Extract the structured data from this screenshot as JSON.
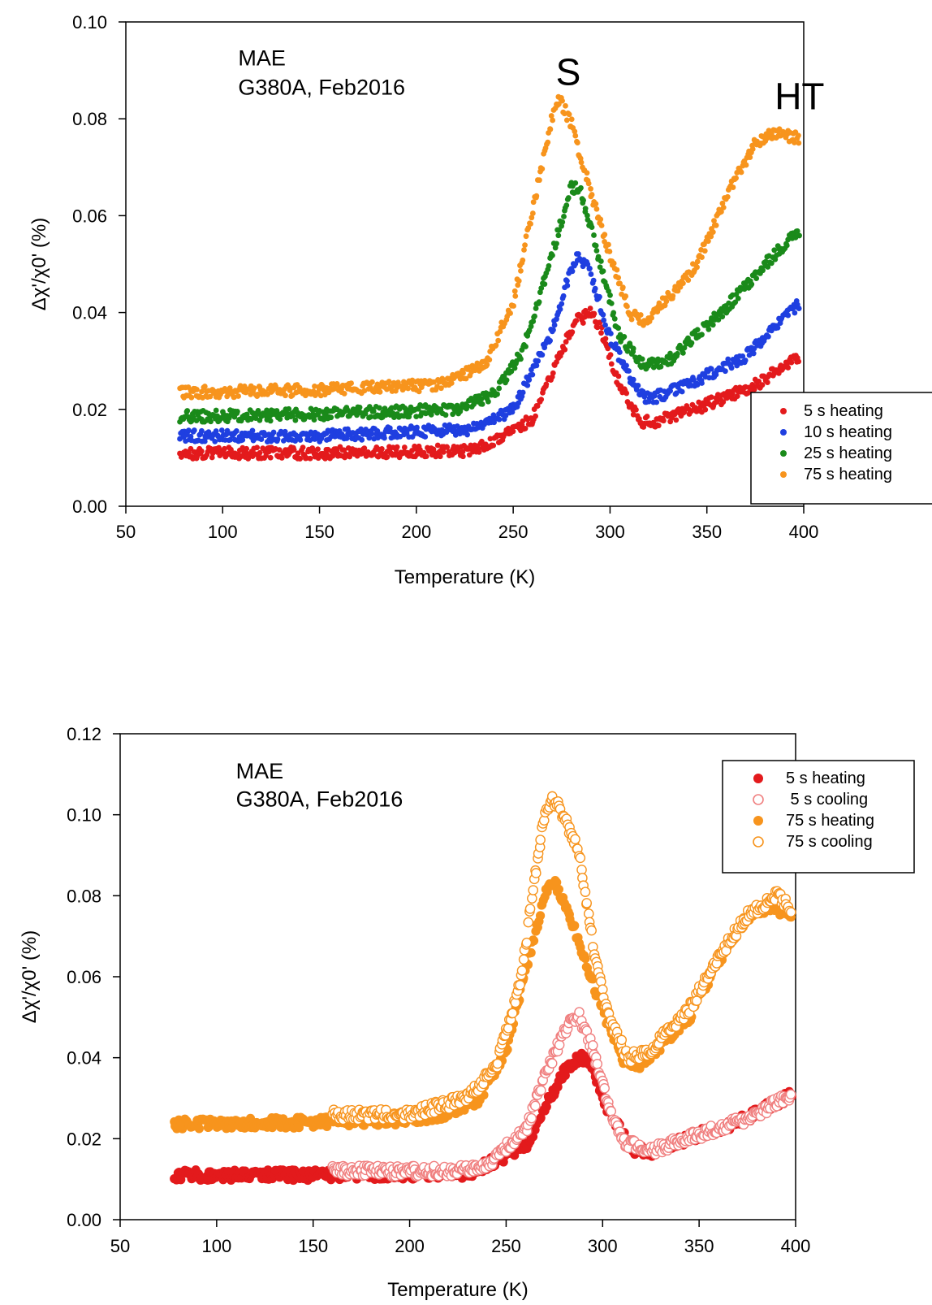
{
  "chart_data": [
    {
      "type": "scatter",
      "xlabel": "Temperature (K)",
      "ylabel": "Δχ'/χ0' (%)",
      "xlim": [
        50,
        400
      ],
      "ylim": [
        0,
        0.1
      ],
      "xticks": [
        50,
        100,
        150,
        200,
        250,
        300,
        350,
        400
      ],
      "xtick_labels": [
        "50",
        "100",
        "150",
        "200",
        "250",
        "300",
        "350",
        "400"
      ],
      "yticks": [
        0,
        0.02,
        0.04,
        0.06,
        0.08,
        0.1
      ],
      "ytick_labels": [
        "0.00",
        "0.02",
        "0.04",
        "0.06",
        "0.08",
        "0.10"
      ],
      "grid": false,
      "legend_position": "bottom-right",
      "annotations": [
        {
          "text": "MAE",
          "x": 108,
          "y": 0.091
        },
        {
          "text": "G380A, Feb2016",
          "x": 108,
          "y": 0.085
        },
        {
          "text": "S",
          "x": 272,
          "y": 0.087
        },
        {
          "text": "HT",
          "x": 385,
          "y": 0.082
        }
      ],
      "series": [
        {
          "name": "5 s heating",
          "color": "#e31a1c",
          "marker": "filled",
          "x_range": [
            78,
            398
          ],
          "points": [
            [
              78,
              0.011
            ],
            [
              150,
              0.011
            ],
            [
              230,
              0.0115
            ],
            [
              260,
              0.018
            ],
            [
              275,
              0.032
            ],
            [
              282,
              0.038
            ],
            [
              290,
              0.04
            ],
            [
              295,
              0.037
            ],
            [
              303,
              0.027
            ],
            [
              315,
              0.0175
            ],
            [
              325,
              0.0175
            ],
            [
              350,
              0.021
            ],
            [
              375,
              0.025
            ],
            [
              398,
              0.031
            ]
          ]
        },
        {
          "name": "10 s heating",
          "color": "#1f3fe0",
          "marker": "filled",
          "x_range": [
            78,
            398
          ],
          "points": [
            [
              78,
              0.0145
            ],
            [
              150,
              0.0145
            ],
            [
              230,
              0.016
            ],
            [
              250,
              0.02
            ],
            [
              270,
              0.036
            ],
            [
              280,
              0.049
            ],
            [
              284,
              0.052
            ],
            [
              290,
              0.048
            ],
            [
              300,
              0.035
            ],
            [
              312,
              0.025
            ],
            [
              320,
              0.022
            ],
            [
              340,
              0.025
            ],
            [
              370,
              0.031
            ],
            [
              398,
              0.042
            ]
          ]
        },
        {
          "name": "25 s heating",
          "color": "#1a8a1a",
          "marker": "filled",
          "x_range": [
            78,
            398
          ],
          "points": [
            [
              78,
              0.0185
            ],
            [
              150,
              0.019
            ],
            [
              220,
              0.02
            ],
            [
              240,
              0.023
            ],
            [
              255,
              0.032
            ],
            [
              270,
              0.052
            ],
            [
              280,
              0.066
            ],
            [
              285,
              0.065
            ],
            [
              295,
              0.05
            ],
            [
              305,
              0.035
            ],
            [
              318,
              0.029
            ],
            [
              330,
              0.03
            ],
            [
              360,
              0.041
            ],
            [
              380,
              0.05
            ],
            [
              398,
              0.057
            ]
          ]
        },
        {
          "name": "75 s heating",
          "color": "#f7941d",
          "marker": "filled",
          "x_range": [
            78,
            398
          ],
          "points": [
            [
              78,
              0.0235
            ],
            [
              150,
              0.024
            ],
            [
              210,
              0.025
            ],
            [
              235,
              0.029
            ],
            [
              250,
              0.042
            ],
            [
              262,
              0.065
            ],
            [
              270,
              0.08
            ],
            [
              274,
              0.084
            ],
            [
              280,
              0.079
            ],
            [
              290,
              0.065
            ],
            [
              300,
              0.052
            ],
            [
              310,
              0.04
            ],
            [
              318,
              0.038
            ],
            [
              330,
              0.043
            ],
            [
              345,
              0.05
            ],
            [
              360,
              0.064
            ],
            [
              375,
              0.075
            ],
            [
              385,
              0.077
            ],
            [
              398,
              0.076
            ]
          ]
        }
      ]
    },
    {
      "type": "scatter",
      "xlabel": "Temperature (K)",
      "ylabel": "Δχ'/χ0' (%)",
      "xlim": [
        50,
        400
      ],
      "ylim": [
        0,
        0.12
      ],
      "xticks": [
        50,
        100,
        150,
        200,
        250,
        300,
        350,
        400
      ],
      "xtick_labels": [
        "50",
        "100",
        "150",
        "200",
        "250",
        "300",
        "350",
        "400"
      ],
      "yticks": [
        0,
        0.02,
        0.04,
        0.06,
        0.08,
        0.1,
        0.12
      ],
      "ytick_labels": [
        "0.00",
        "0.02",
        "0.04",
        "0.06",
        "0.08",
        "0.10",
        "0.12"
      ],
      "grid": false,
      "legend_position": "top-right",
      "annotations": [
        {
          "text": "MAE",
          "x": 110,
          "y": 0.109
        },
        {
          "text": "G380A, Feb2016",
          "x": 110,
          "y": 0.102
        }
      ],
      "series": [
        {
          "name": "5 s heating",
          "color": "#e31a1c",
          "marker": "filled",
          "x_range": [
            78,
            398
          ],
          "points": [
            [
              78,
              0.011
            ],
            [
              150,
              0.011
            ],
            [
              230,
              0.0115
            ],
            [
              260,
              0.018
            ],
            [
              275,
              0.032
            ],
            [
              282,
              0.038
            ],
            [
              290,
              0.04
            ],
            [
              295,
              0.037
            ],
            [
              303,
              0.027
            ],
            [
              315,
              0.0175
            ],
            [
              325,
              0.0165
            ],
            [
              350,
              0.021
            ],
            [
              375,
              0.025
            ],
            [
              398,
              0.031
            ]
          ]
        },
        {
          "name": " 5 s cooling",
          "color": "#f08080",
          "marker": "open",
          "x_range": [
            160,
            398
          ],
          "points": [
            [
              160,
              0.012
            ],
            [
              220,
              0.012
            ],
            [
              240,
              0.0135
            ],
            [
              260,
              0.022
            ],
            [
              272,
              0.038
            ],
            [
              282,
              0.048
            ],
            [
              288,
              0.05
            ],
            [
              295,
              0.042
            ],
            [
              303,
              0.028
            ],
            [
              312,
              0.019
            ],
            [
              325,
              0.017
            ],
            [
              350,
              0.021
            ],
            [
              375,
              0.025
            ],
            [
              398,
              0.031
            ]
          ]
        },
        {
          "name": "75 s heating",
          "color": "#f7941d",
          "marker": "filled",
          "x_range": [
            78,
            398
          ],
          "points": [
            [
              78,
              0.0235
            ],
            [
              150,
              0.024
            ],
            [
              210,
              0.025
            ],
            [
              235,
              0.029
            ],
            [
              250,
              0.042
            ],
            [
              262,
              0.065
            ],
            [
              270,
              0.08
            ],
            [
              274,
              0.084
            ],
            [
              280,
              0.079
            ],
            [
              290,
              0.065
            ],
            [
              300,
              0.052
            ],
            [
              310,
              0.04
            ],
            [
              318,
              0.038
            ],
            [
              330,
              0.043
            ],
            [
              345,
              0.05
            ],
            [
              360,
              0.064
            ],
            [
              375,
              0.075
            ],
            [
              385,
              0.077
            ],
            [
              398,
              0.076
            ]
          ]
        },
        {
          "name": "75 s cooling",
          "color": "#f7941d",
          "marker": "open",
          "x_range": [
            160,
            398
          ],
          "points": [
            [
              160,
              0.026
            ],
            [
              200,
              0.026
            ],
            [
              230,
              0.03
            ],
            [
              245,
              0.038
            ],
            [
              258,
              0.06
            ],
            [
              265,
              0.085
            ],
            [
              270,
              0.1
            ],
            [
              274,
              0.104
            ],
            [
              280,
              0.1
            ],
            [
              288,
              0.09
            ],
            [
              295,
              0.068
            ],
            [
              303,
              0.05
            ],
            [
              313,
              0.04
            ],
            [
              325,
              0.042
            ],
            [
              345,
              0.052
            ],
            [
              360,
              0.065
            ],
            [
              375,
              0.075
            ],
            [
              390,
              0.08
            ],
            [
              398,
              0.077
            ]
          ]
        }
      ]
    }
  ]
}
